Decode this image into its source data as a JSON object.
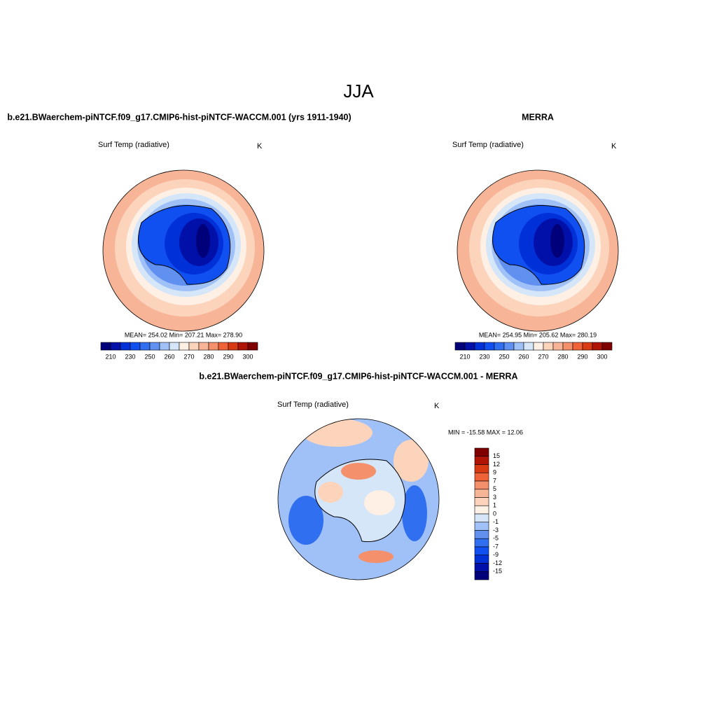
{
  "title": "JJA",
  "panels": [
    {
      "title": "b.e21.BWaerchem-piNTCF.f09_g17.CMIP6-hist-piNTCF-WACCM.001 (yrs 1911-1940)",
      "variable": "Surf Temp (radiative)",
      "units": "K",
      "stats": "MEAN= 254.02  Min= 207.21  Max= 278.90",
      "colorbar_labels": [
        210,
        230,
        250,
        260,
        270,
        280,
        290,
        300
      ]
    },
    {
      "title": "MERRA",
      "variable": "Surf Temp (radiative)",
      "units": "K",
      "stats": "MEAN= 254.95  Min= 205.62  Max= 280.19",
      "colorbar_labels": [
        210,
        230,
        250,
        260,
        270,
        280,
        290,
        300
      ]
    }
  ],
  "difference": {
    "title": "b.e21.BWaerchem-piNTCF.f09_g17.CMIP6-hist-piNTCF-WACCM.001 - MERRA",
    "variable": "Surf Temp (radiative)",
    "units": "K",
    "stats": "MIN = -15.58 MAX =  12.06",
    "colorbar_labels": [
      15,
      12,
      9,
      7,
      5,
      3,
      1,
      0,
      -1,
      -3,
      -5,
      -7,
      -9,
      -12,
      -15
    ]
  }
}
